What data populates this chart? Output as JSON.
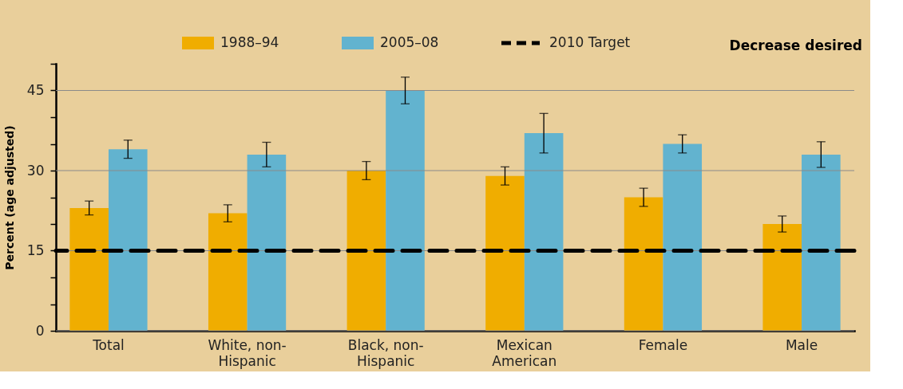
{
  "chart_data": {
    "type": "bar",
    "ylabel": "Percent (age adjusted)",
    "categories": [
      "Total",
      "White, non-Hispanic",
      "Black, non-Hispanic",
      "Mexican American",
      "Female",
      "Male"
    ],
    "series": [
      {
        "name": "1988–94",
        "color": "#f0ad00",
        "values": [
          23,
          22,
          30,
          29,
          25,
          20
        ],
        "errors": [
          1.3,
          1.6,
          1.7,
          1.7,
          1.7,
          1.5
        ]
      },
      {
        "name": "2005–08",
        "color": "#62b3cf",
        "values": [
          34,
          33,
          45,
          37,
          35,
          33
        ],
        "errors": [
          1.7,
          2.3,
          2.5,
          3.7,
          1.7,
          2.4
        ]
      }
    ],
    "ylim": [
      0,
      50
    ],
    "yticks": [
      0,
      {
        "value": 5,
        "label": null
      },
      {
        "value": 10,
        "label": null
      },
      15,
      {
        "value": 20,
        "label": null
      },
      {
        "value": 25,
        "label": null
      },
      30,
      {
        "value": 35,
        "label": null
      },
      {
        "value": 40,
        "label": null
      },
      45,
      {
        "value": 50,
        "label": null
      }
    ],
    "ref_lines": [
      {
        "axis": "y",
        "value": 15,
        "label": "2010 Target",
        "color": "#000000",
        "line_style": "dashed"
      }
    ],
    "annotations": [
      "Decrease desired"
    ],
    "grid": "y",
    "legend": "top"
  }
}
